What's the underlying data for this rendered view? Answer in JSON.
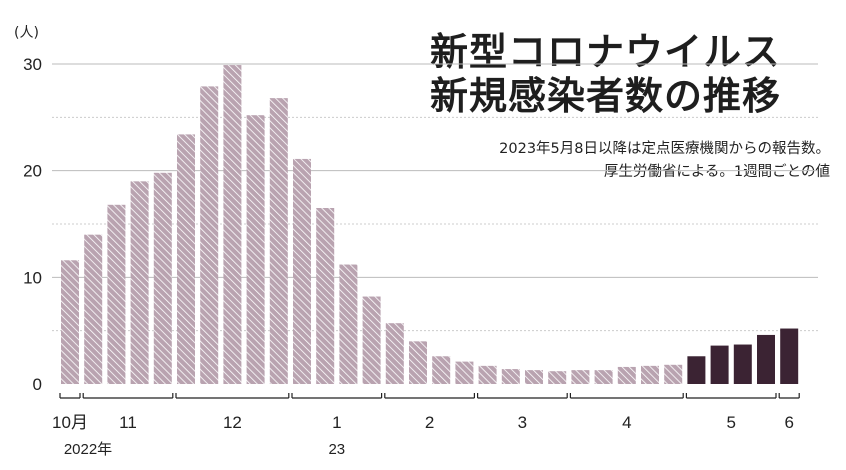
{
  "title_line1": "新型コロナウイルス",
  "title_line2": "新規感染者数の推移",
  "note_line1": "2023年5月8日以降は定点医療機関からの報告数。",
  "note_line2": "厚生労働省による。1週間ごとの値",
  "unit_label": "(人)",
  "colors": {
    "hatched_bar": "#b9a3b0",
    "hatched_stripe": "#ffffff",
    "solid_bar": "#3b2333",
    "solid_grid": "#bbbbbb",
    "dashed_grid": "#cccccc"
  },
  "chart_data": {
    "type": "bar",
    "ylim": [
      0,
      30
    ],
    "yticks": [
      0,
      10,
      20,
      30
    ],
    "grid": "horizontal",
    "values": [
      11.6,
      14.0,
      16.8,
      19.0,
      19.8,
      23.4,
      27.9,
      29.9,
      25.2,
      26.8,
      21.1,
      16.5,
      11.2,
      8.2,
      5.7,
      4.0,
      2.6,
      2.1,
      1.7,
      1.4,
      1.3,
      1.2,
      1.3,
      1.3,
      1.6,
      1.7,
      1.8,
      2.6,
      3.6,
      3.7,
      4.6,
      5.2
    ],
    "bar_styles": [
      "hatched",
      "hatched",
      "hatched",
      "hatched",
      "hatched",
      "hatched",
      "hatched",
      "hatched",
      "hatched",
      "hatched",
      "hatched",
      "hatched",
      "hatched",
      "hatched",
      "hatched",
      "hatched",
      "hatched",
      "hatched",
      "hatched",
      "hatched",
      "hatched",
      "hatched",
      "hatched",
      "hatched",
      "hatched",
      "hatched",
      "hatched",
      "solid",
      "solid",
      "solid",
      "solid",
      "solid"
    ],
    "month_groups": [
      {
        "label": "10月",
        "start": 0,
        "end": 0
      },
      {
        "label": "11",
        "start": 1,
        "end": 4
      },
      {
        "label": "12",
        "start": 5,
        "end": 9
      },
      {
        "label": "1",
        "start": 10,
        "end": 13
      },
      {
        "label": "2",
        "start": 14,
        "end": 17
      },
      {
        "label": "3",
        "start": 18,
        "end": 21
      },
      {
        "label": "4",
        "start": 22,
        "end": 26
      },
      {
        "label": "5",
        "start": 27,
        "end": 30
      },
      {
        "label": "6",
        "start": 31,
        "end": 31
      }
    ],
    "year_labels": [
      {
        "label": "2022年",
        "group": 0
      },
      {
        "label": "23",
        "group": 3
      }
    ]
  }
}
